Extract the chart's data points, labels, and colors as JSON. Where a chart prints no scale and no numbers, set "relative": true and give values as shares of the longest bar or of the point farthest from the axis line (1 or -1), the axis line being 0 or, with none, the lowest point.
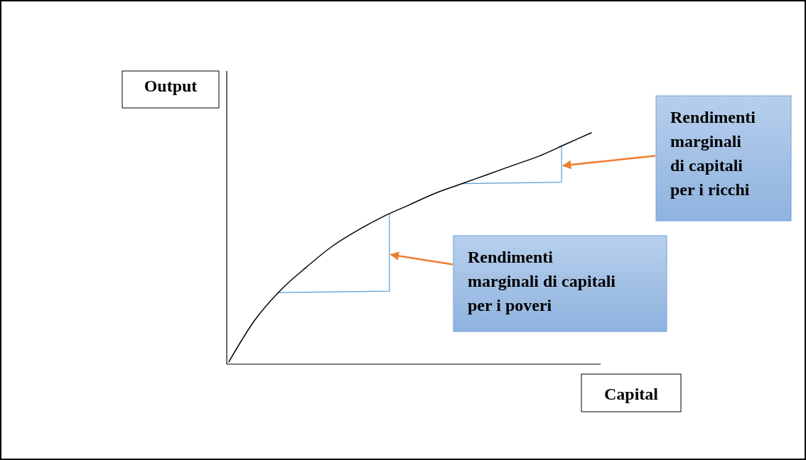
{
  "chart_data": {
    "type": "line",
    "relative": true,
    "xlabel": "Capital",
    "ylabel": "Output",
    "categories": [
      null,
      null,
      null,
      null,
      null,
      null,
      null,
      null,
      null,
      null,
      null,
      null,
      null,
      null,
      null
    ],
    "series": [
      {
        "color": "#000000",
        "values": [
          0.01,
          0.19,
          0.32,
          0.42,
          0.51,
          0.58,
          0.64,
          0.69,
          0.74,
          0.78,
          0.82,
          0.86,
          0.9,
          0.95,
          1.0
        ]
      }
    ],
    "annotations": [
      "Rendimenti\nmarginali\ndi capitali\nper i ricchi",
      "Rendimenti\nmarginali di capitali\nper i poveri"
    ]
  }
}
